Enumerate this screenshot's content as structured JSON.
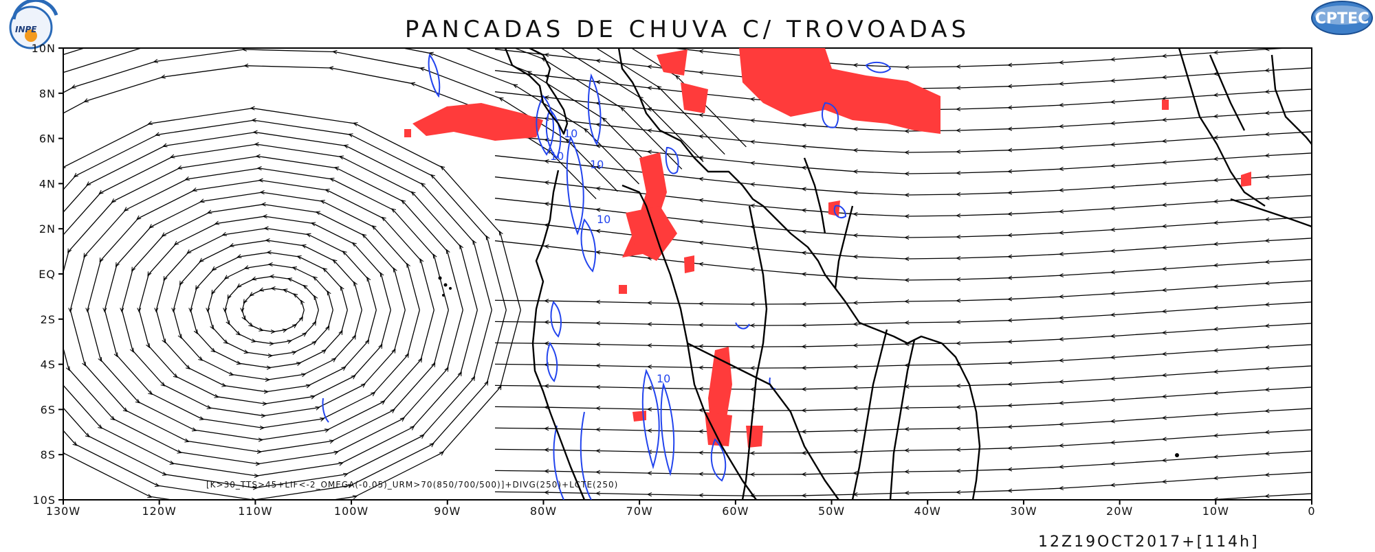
{
  "title": "PANCADAS DE CHUVA C/ TROVOADAS",
  "legend_text": "[K>30_TTS>45+LIF<-2_OMEGA(-0.05)_URM>70(850/700/500)]+DIVG(250)+LCTE(250)",
  "timestamp": "12Z19OCT2017+[114h]",
  "logos": {
    "left": "INPE",
    "right": "CPTEC"
  },
  "contour_label": "10",
  "colors": {
    "storm_fill": "#ff3b3b",
    "contours": "#2244ee",
    "streamlines": "#000000",
    "coast": "#000000"
  },
  "map_data": {
    "type": "map",
    "projection": "lat-lon",
    "lon_range": [
      -130,
      0
    ],
    "lat_range": [
      -10,
      10
    ],
    "x_ticks": [
      "130W",
      "120W",
      "110W",
      "100W",
      "90W",
      "80W",
      "70W",
      "60W",
      "50W",
      "40W",
      "30W",
      "20W",
      "10W",
      "0"
    ],
    "y_ticks": [
      "10S",
      "8S",
      "6S",
      "4S",
      "2S",
      "EQ",
      "2N",
      "4N",
      "6N",
      "8N",
      "10N"
    ],
    "cyclone_center": {
      "lon": -108,
      "lat": -1.6
    }
  }
}
